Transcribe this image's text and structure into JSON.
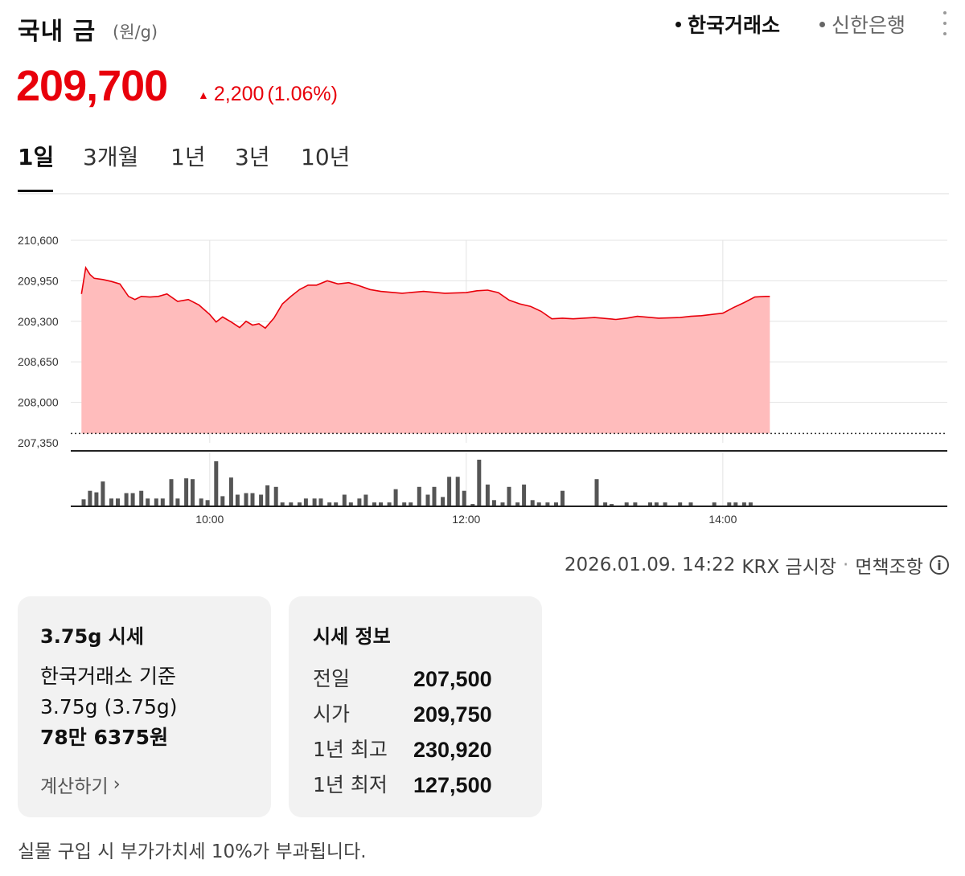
{
  "header": {
    "title": "국내 금",
    "unit": "(원/g)",
    "sources": [
      {
        "label": "한국거래소",
        "active": true
      },
      {
        "label": "신한은행",
        "active": false
      }
    ]
  },
  "price": {
    "current": "209,700",
    "change": "2,200",
    "change_pct": "(1.06%)",
    "direction": "up",
    "color": "#e8000b"
  },
  "tabs": [
    {
      "label": "1일",
      "active": true
    },
    {
      "label": "3개월",
      "active": false
    },
    {
      "label": "1년",
      "active": false
    },
    {
      "label": "3년",
      "active": false
    },
    {
      "label": "10년",
      "active": false
    }
  ],
  "chart_data": {
    "type": "area",
    "y_ticks": [
      "210,600",
      "209,950",
      "209,300",
      "208,650",
      "208,000",
      "207,350"
    ],
    "ylim": [
      207350,
      210600
    ],
    "x_ticks": [
      "10:00",
      "12:00",
      "14:00"
    ],
    "x_range": [
      "08:55",
      "15:45"
    ],
    "baseline": 207500,
    "line_color": "#e8000b",
    "fill_color": "#ffbcbc",
    "series": [
      {
        "x": [
          "09:00",
          "09:02",
          "09:04",
          "09:06",
          "09:10",
          "09:14",
          "09:18",
          "09:22",
          "09:25",
          "09:28",
          "09:32",
          "09:36",
          "09:40",
          "09:45",
          "09:50",
          "09:55",
          "09:58",
          "10:00",
          "10:03",
          "10:06",
          "10:10",
          "10:14",
          "10:17",
          "10:20",
          "10:23",
          "10:26",
          "10:30",
          "10:34",
          "10:38",
          "10:42",
          "10:46",
          "10:50",
          "10:55",
          "11:00",
          "11:05",
          "11:10",
          "11:15",
          "11:20",
          "11:30",
          "11:40",
          "11:50",
          "12:00",
          "12:05",
          "12:10",
          "12:15",
          "12:20",
          "12:25",
          "12:30",
          "12:35",
          "12:40",
          "12:45",
          "12:50",
          "13:00",
          "13:10",
          "13:15",
          "13:20",
          "13:30",
          "13:40",
          "13:45",
          "13:50",
          "14:00",
          "14:05",
          "14:10",
          "14:15",
          "14:20",
          "14:22"
        ],
        "values": [
          209740,
          210160,
          210050,
          209990,
          209970,
          209940,
          209900,
          209700,
          209650,
          209700,
          209690,
          209700,
          209740,
          209620,
          209650,
          209560,
          209470,
          209410,
          209290,
          209370,
          209290,
          209200,
          209300,
          209240,
          209260,
          209190,
          209350,
          209580,
          209700,
          209810,
          209880,
          209880,
          209950,
          209900,
          209920,
          209870,
          209810,
          209780,
          209750,
          209780,
          209750,
          209760,
          209790,
          209800,
          209760,
          209640,
          209580,
          209540,
          209460,
          209340,
          209350,
          209340,
          209360,
          209330,
          209350,
          209380,
          209350,
          209360,
          209380,
          209390,
          209430,
          209520,
          209600,
          209690,
          209700,
          209700
        ]
      }
    ],
    "volume": {
      "x": [
        "09:01",
        "09:04",
        "09:07",
        "09:10",
        "09:14",
        "09:17",
        "09:21",
        "09:24",
        "09:28",
        "09:31",
        "09:35",
        "09:38",
        "09:42",
        "09:45",
        "09:49",
        "09:52",
        "09:56",
        "09:59",
        "10:03",
        "10:06",
        "10:10",
        "10:13",
        "10:17",
        "10:20",
        "10:24",
        "10:27",
        "10:31",
        "10:34",
        "10:38",
        "10:42",
        "10:45",
        "10:49",
        "10:52",
        "10:56",
        "10:59",
        "11:03",
        "11:06",
        "11:10",
        "11:13",
        "11:17",
        "11:20",
        "11:24",
        "11:27",
        "11:31",
        "11:34",
        "11:38",
        "11:42",
        "11:45",
        "11:49",
        "11:52",
        "11:56",
        "11:59",
        "12:03",
        "12:06",
        "12:10",
        "12:13",
        "12:17",
        "12:20",
        "12:24",
        "12:27",
        "12:31",
        "12:34",
        "12:38",
        "12:42",
        "12:45",
        "13:01",
        "13:05",
        "13:08",
        "13:15",
        "13:19",
        "13:26",
        "13:29",
        "13:33",
        "13:40",
        "13:45",
        "13:56",
        "14:03",
        "14:06",
        "14:10",
        "14:13"
      ],
      "values": [
        9,
        20,
        18,
        32,
        10,
        10,
        17,
        17,
        20,
        10,
        10,
        10,
        35,
        10,
        36,
        35,
        10,
        8,
        58,
        13,
        37,
        15,
        17,
        17,
        15,
        27,
        25,
        5,
        5,
        5,
        10,
        10,
        10,
        5,
        5,
        15,
        5,
        10,
        15,
        5,
        5,
        5,
        22,
        5,
        5,
        25,
        15,
        25,
        12,
        38,
        38,
        20,
        3,
        60,
        28,
        8,
        5,
        25,
        5,
        28,
        8,
        5,
        5,
        5,
        20,
        35,
        5,
        3,
        5,
        5,
        5,
        5,
        5,
        5,
        5,
        5,
        5,
        5,
        5,
        5
      ]
    }
  },
  "meta": {
    "timestamp": "2026.01.09. 14:22",
    "market": "KRX 금시장",
    "disclaimer": "면책조항"
  },
  "card_weight": {
    "title": "3.75g 시세",
    "basis": "한국거래소 기준",
    "amount": "3.75g (3.75g)",
    "value": "78만 6375원",
    "calc_label": "계산하기"
  },
  "card_info": {
    "title": "시세 정보",
    "rows": [
      {
        "label": "전일",
        "value": "207,500"
      },
      {
        "label": "시가",
        "value": "209,750"
      },
      {
        "label": "1년 최고",
        "value": "230,920"
      },
      {
        "label": "1년 최저",
        "value": "127,500"
      }
    ]
  },
  "footnote": "실물 구입 시 부가가치세 10%가 부과됩니다."
}
